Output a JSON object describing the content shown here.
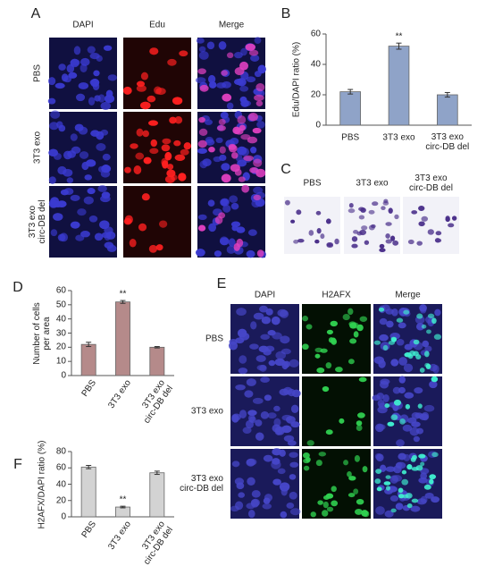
{
  "panel_labels": [
    "A",
    "B",
    "C",
    "D",
    "E",
    "F"
  ],
  "panel_a": {
    "columns": [
      "DAPI",
      "Edu",
      "Merge"
    ],
    "rows": [
      "PBS",
      "3T3 exo",
      "3T3 exo\ncirc-DB del"
    ]
  },
  "panel_c": {
    "columns": [
      "PBS",
      "3T3 exo",
      "3T3 exo\ncirc-DB del"
    ]
  },
  "panel_e": {
    "columns": [
      "DAPI",
      "H2AFX",
      "Merge"
    ],
    "rows": [
      "PBS",
      "3T3 exo",
      "3T3 exo\ncirc-DB del"
    ]
  },
  "chart_data": [
    {
      "type": "bar",
      "y_label": "Edu/DAPI ratio (%)",
      "categories": [
        "PBS",
        "3T3 exo",
        "3T3 exo\ncirc-DB del"
      ],
      "values": [
        22,
        52,
        20
      ],
      "errors": [
        1.5,
        2,
        1.5
      ],
      "significance": [
        null,
        "**",
        null
      ],
      "color": "#8fa3c8",
      "ylim": [
        0,
        60
      ],
      "yticks": [
        0,
        20,
        40,
        60
      ]
    },
    {
      "type": "bar",
      "y_label": "Number of cells\nper area",
      "categories": [
        "PBS",
        "3T3 exo",
        "3T3 exo\ncirc-DB del"
      ],
      "values": [
        22,
        52,
        20
      ],
      "errors": [
        1.5,
        1,
        0.5
      ],
      "significance": [
        null,
        "**",
        null
      ],
      "color": "#b58a8a",
      "ylim": [
        0,
        60
      ],
      "yticks": [
        0,
        10,
        20,
        30,
        40,
        50,
        60
      ]
    },
    {
      "type": "bar",
      "y_label": "H2AFX/DAPI ratio (%)",
      "categories": [
        "PBS",
        "3T3 exo",
        "3T3 exo\ncirc-DB del"
      ],
      "values": [
        61,
        12,
        54
      ],
      "errors": [
        2,
        1,
        2
      ],
      "significance": [
        null,
        "**",
        null
      ],
      "color": "#d3d3d3",
      "ylim": [
        0,
        80
      ],
      "yticks": [
        0,
        20,
        40,
        60,
        80
      ]
    }
  ]
}
